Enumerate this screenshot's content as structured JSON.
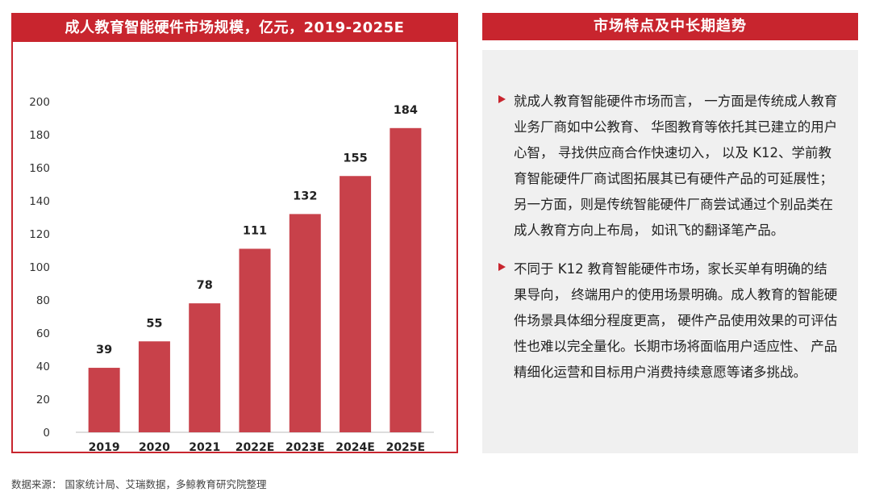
{
  "left_panel": {
    "title": "成人教育智能硬件市场规模，亿元，2019-2025E"
  },
  "chart_data": {
    "type": "bar",
    "title": "成人教育智能硬件市场规模，亿元，2019-2025E",
    "categories": [
      "2019",
      "2020",
      "2021",
      "2022E",
      "2023E",
      "2024E",
      "2025E"
    ],
    "values": [
      39,
      55,
      78,
      111,
      132,
      155,
      184
    ],
    "ylim": [
      0,
      200
    ],
    "yticks": [
      0,
      20,
      40,
      60,
      80,
      100,
      120,
      140,
      160,
      180,
      200
    ],
    "grid": false,
    "legend": "none",
    "bar_color": "#c8414a",
    "data_labels": true
  },
  "right_panel": {
    "title": "市场特点及中长期趋势",
    "bullets": [
      "就成人教育智能硬件市场而言， 一方面是传统成人教育业务厂商如中公教育、 华图教育等依托其已建立的用户心智， 寻找供应商合作快速切入， 以及 K12、学前教育智能硬件厂商试图拓展其已有硬件产品的可延展性； 另一方面，则是传统智能硬件厂商尝试通过个别品类在成人教育方向上布局， 如讯飞的翻译笔产品。",
      "不同于 K12 教育智能硬件市场，家长买单有明确的结果导向， 终端用户的使用场景明确。成人教育的智能硬件场景具体细分程度更高， 硬件产品使用效果的可评估性也难以完全量化。长期市场将面临用户适应性、 产品精细化运营和目标用户消费持续意愿等诸多挑战。"
    ]
  },
  "source": "数据来源： 国家统计局、艾瑞数据，多鲸教育研究院整理",
  "colors": {
    "accent": "#c8252e",
    "bar": "#c8414a",
    "panel_bg": "#f0f0f0"
  }
}
